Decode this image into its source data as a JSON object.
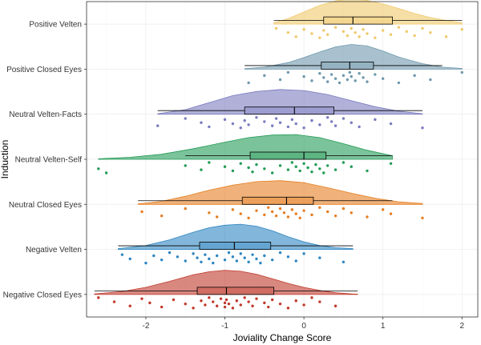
{
  "chart_data": {
    "type": "raincloud",
    "xlabel": "Joviality Change Score",
    "ylabel": "Induction",
    "xlim": [
      -2.75,
      2.2
    ],
    "xticks": [
      -2,
      -1,
      0,
      1,
      2
    ],
    "grid": true,
    "legend": "none",
    "groups": [
      {
        "label": "Negative Closed Eyes",
        "color": "#c0392b",
        "density": {
          "x": [
            -2.65,
            -2.3,
            -2.0,
            -1.7,
            -1.4,
            -1.2,
            -1.0,
            -0.8,
            -0.6,
            -0.4,
            -0.2,
            0.0,
            0.2,
            0.4,
            0.6,
            0.68
          ],
          "y": [
            0.02,
            0.12,
            0.28,
            0.52,
            0.78,
            0.9,
            0.96,
            0.92,
            0.8,
            0.62,
            0.44,
            0.28,
            0.16,
            0.07,
            0.02,
            0.01
          ]
        },
        "box": {
          "min": -2.65,
          "q1": -1.35,
          "median": -0.98,
          "q3": -0.38,
          "max": 0.68
        },
        "points": [
          -2.6,
          -2.4,
          -2.2,
          -2.05,
          -1.95,
          -1.8,
          -1.65,
          -1.5,
          -1.4,
          -1.3,
          -1.25,
          -1.2,
          -1.15,
          -1.1,
          -1.05,
          -1.0,
          -1.0,
          -0.98,
          -0.95,
          -0.9,
          -0.85,
          -0.8,
          -0.75,
          -0.7,
          -0.65,
          -0.6,
          -0.5,
          -0.45,
          -0.4,
          -0.3,
          -0.2,
          -0.1,
          0.0,
          0.1,
          0.2,
          0.4
        ]
      },
      {
        "label": "Negative Velten",
        "color": "#2e86c1",
        "density": {
          "x": [
            -2.35,
            -2.0,
            -1.7,
            -1.4,
            -1.2,
            -1.0,
            -0.8,
            -0.6,
            -0.4,
            -0.2,
            0.0,
            0.2,
            0.4,
            0.62
          ],
          "y": [
            0.03,
            0.15,
            0.38,
            0.68,
            0.86,
            0.96,
            1.0,
            0.92,
            0.74,
            0.5,
            0.3,
            0.15,
            0.07,
            0.03
          ]
        },
        "box": {
          "min": -2.35,
          "q1": -1.32,
          "median": -0.88,
          "q3": -0.42,
          "max": 0.62
        },
        "points": [
          -2.3,
          -2.2,
          -2.0,
          -1.9,
          -1.8,
          -1.7,
          -1.6,
          -1.5,
          -1.4,
          -1.35,
          -1.3,
          -1.25,
          -1.2,
          -1.15,
          -1.1,
          -1.0,
          -0.95,
          -0.9,
          -0.85,
          -0.8,
          -0.75,
          -0.7,
          -0.65,
          -0.6,
          -0.55,
          -0.5,
          -0.4,
          -0.3,
          -0.2,
          -0.1,
          0.0,
          0.2,
          0.5
        ]
      },
      {
        "label": "Neutral Closed Eyes",
        "color": "#e67e22",
        "density": {
          "x": [
            -2.1,
            -1.8,
            -1.5,
            -1.2,
            -0.9,
            -0.6,
            -0.3,
            0.0,
            0.3,
            0.6,
            0.9,
            1.2,
            1.5
          ],
          "y": [
            0.02,
            0.12,
            0.32,
            0.56,
            0.76,
            0.9,
            0.94,
            0.86,
            0.66,
            0.44,
            0.24,
            0.1,
            0.03
          ]
        },
        "box": {
          "min": -2.1,
          "q1": -0.78,
          "median": -0.22,
          "q3": 0.12,
          "max": 1.12
        },
        "points": [
          -2.05,
          -1.8,
          -1.5,
          -1.2,
          -1.1,
          -0.9,
          -0.8,
          -0.7,
          -0.6,
          -0.5,
          -0.45,
          -0.4,
          -0.35,
          -0.3,
          -0.25,
          -0.2,
          -0.15,
          -0.1,
          -0.05,
          0.0,
          0.1,
          0.2,
          0.3,
          0.4,
          0.5,
          0.6,
          0.8,
          1.0,
          1.1,
          1.5
        ]
      },
      {
        "label": "Neutral Velten-Self",
        "color": "#239b56",
        "density": {
          "x": [
            -2.6,
            -2.2,
            -1.8,
            -1.4,
            -1.0,
            -0.7,
            -0.4,
            -0.1,
            0.2,
            0.5,
            0.8,
            1.12
          ],
          "y": [
            0.02,
            0.08,
            0.2,
            0.42,
            0.68,
            0.86,
            0.96,
            0.98,
            0.86,
            0.62,
            0.36,
            0.14
          ]
        },
        "box": {
          "min": -1.5,
          "q1": -0.68,
          "median": 0.0,
          "q3": 0.28,
          "max": 1.12
        },
        "points": [
          -2.6,
          -2.5,
          -1.5,
          -1.3,
          -1.2,
          -1.0,
          -0.9,
          -0.8,
          -0.7,
          -0.65,
          -0.6,
          -0.5,
          -0.4,
          -0.3,
          -0.2,
          -0.15,
          -0.1,
          -0.05,
          0.0,
          0.05,
          0.1,
          0.15,
          0.2,
          0.25,
          0.3,
          0.4,
          0.5,
          0.6,
          0.8,
          1.1
        ]
      },
      {
        "label": "Neutral Velten-Facts",
        "color": "#7b7bc0",
        "density": {
          "x": [
            -1.85,
            -1.5,
            -1.2,
            -0.9,
            -0.6,
            -0.3,
            0.0,
            0.3,
            0.6,
            0.9,
            1.2,
            1.5
          ],
          "y": [
            0.02,
            0.18,
            0.46,
            0.74,
            0.9,
            0.98,
            0.94,
            0.78,
            0.54,
            0.3,
            0.12,
            0.02
          ]
        },
        "box": {
          "min": -1.85,
          "q1": -0.75,
          "median": -0.12,
          "q3": 0.38,
          "max": 1.5
        },
        "points": [
          -1.85,
          -1.5,
          -1.3,
          -1.2,
          -1.0,
          -0.9,
          -0.8,
          -0.75,
          -0.7,
          -0.6,
          -0.5,
          -0.4,
          -0.35,
          -0.3,
          -0.2,
          -0.15,
          -0.1,
          0.0,
          0.1,
          0.2,
          0.3,
          0.35,
          0.4,
          0.5,
          0.6,
          0.7,
          0.9,
          1.1,
          1.5
        ]
      },
      {
        "label": "Positive Closed Eyes",
        "color": "#6f98ad",
        "density": {
          "x": [
            -0.75,
            -0.5,
            -0.2,
            0.0,
            0.2,
            0.4,
            0.6,
            0.8,
            1.0,
            1.2,
            1.5,
            1.75,
            2.0
          ],
          "y": [
            0.02,
            0.08,
            0.26,
            0.46,
            0.68,
            0.88,
            0.98,
            0.92,
            0.72,
            0.48,
            0.22,
            0.08,
            0.03
          ]
        },
        "box": {
          "min": -0.75,
          "q1": 0.22,
          "median": 0.58,
          "q3": 0.88,
          "max": 1.75
        },
        "points": [
          -0.7,
          -0.5,
          -0.3,
          -0.2,
          0.0,
          0.1,
          0.2,
          0.25,
          0.3,
          0.35,
          0.4,
          0.45,
          0.5,
          0.55,
          0.58,
          0.6,
          0.65,
          0.7,
          0.75,
          0.8,
          0.9,
          1.0,
          1.2,
          1.4,
          1.6,
          2.0
        ]
      },
      {
        "label": "Positive Velten",
        "color": "#f0c96b",
        "density": {
          "x": [
            -0.38,
            -0.2,
            0.0,
            0.2,
            0.4,
            0.6,
            0.8,
            1.0,
            1.2,
            1.4,
            1.6,
            1.8,
            2.0
          ],
          "y": [
            0.05,
            0.22,
            0.48,
            0.74,
            0.92,
            1.0,
            0.94,
            0.8,
            0.62,
            0.42,
            0.26,
            0.14,
            0.06
          ]
        },
        "box": {
          "min": -0.38,
          "q1": 0.25,
          "median": 0.62,
          "q3": 1.12,
          "max": 2.0
        },
        "points": [
          -0.35,
          -0.2,
          -0.1,
          0.0,
          0.1,
          0.2,
          0.25,
          0.3,
          0.4,
          0.5,
          0.55,
          0.6,
          0.65,
          0.7,
          0.75,
          0.8,
          0.9,
          1.0,
          1.1,
          1.2,
          1.3,
          1.4,
          1.5,
          1.6,
          1.8,
          2.0
        ]
      }
    ]
  }
}
